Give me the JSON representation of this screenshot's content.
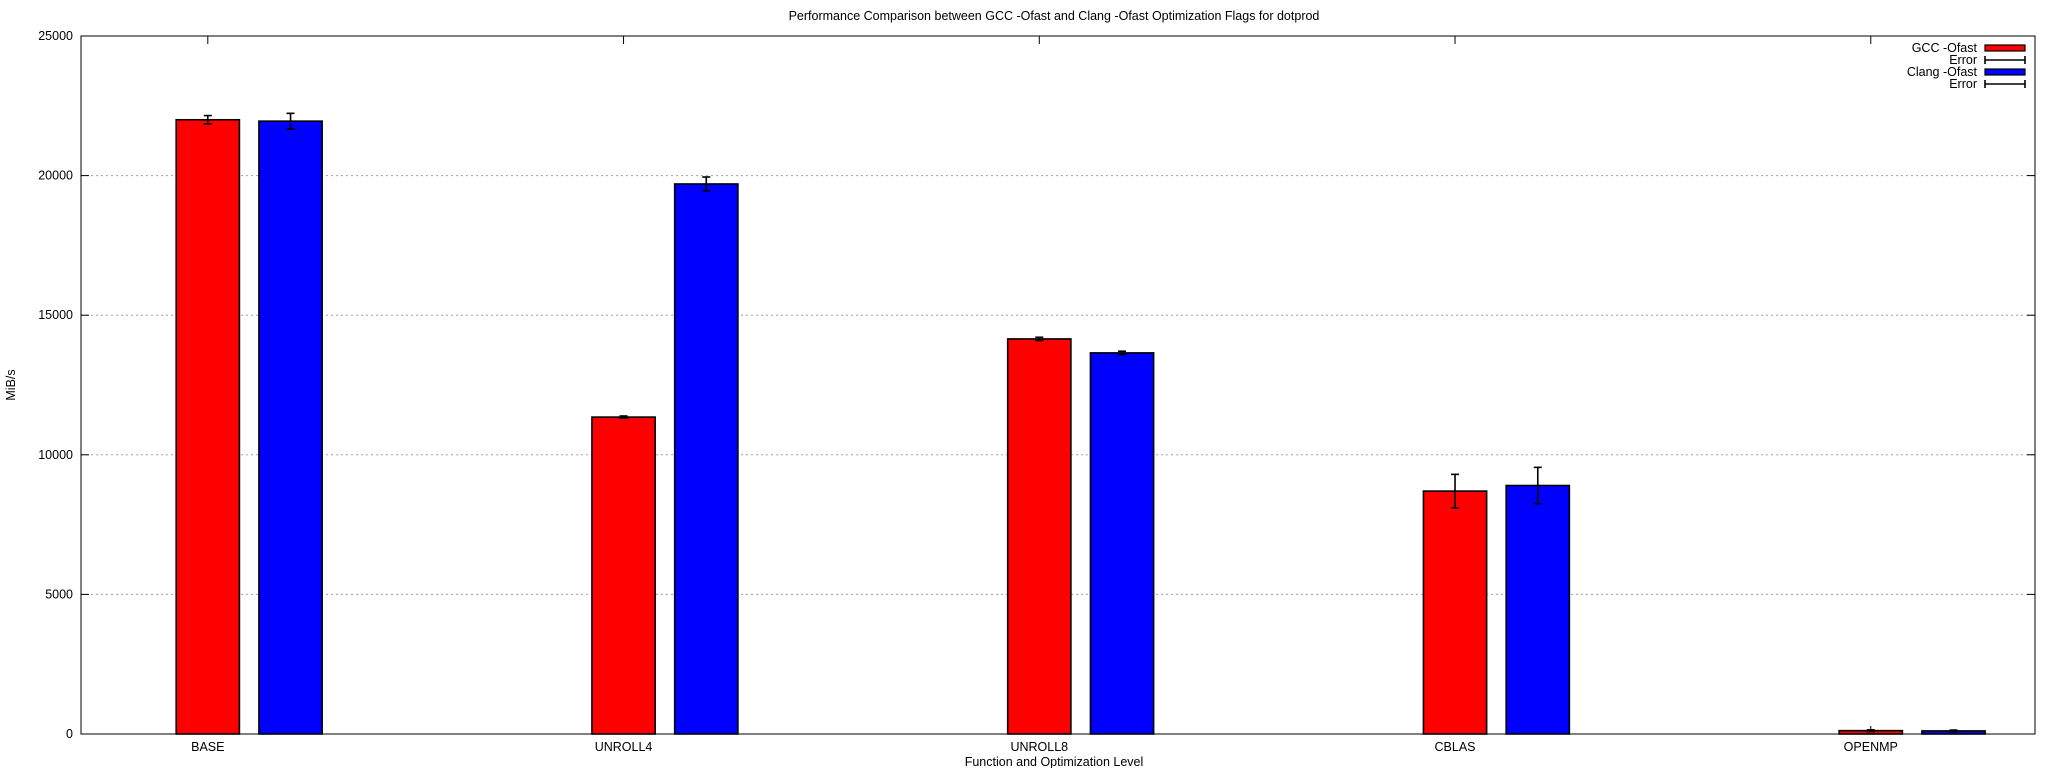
{
  "chart_data": {
    "type": "bar",
    "title": "Performance Comparison between GCC -Ofast and Clang -Ofast Optimization Flags for dotprod",
    "xlabel": "Function and Optimization Level",
    "ylabel": "MiB/s",
    "categories": [
      "BASE",
      "UNROLL4",
      "UNROLL8",
      "CBLAS",
      "OPENMP"
    ],
    "ylim": [
      0,
      25000
    ],
    "yticks": [
      0,
      5000,
      10000,
      15000,
      20000,
      25000
    ],
    "grid": "horizontal dotted",
    "legend_position": "top-right",
    "series": [
      {
        "name": "GCC -Ofast",
        "color": "#ff0000",
        "values": [
          22000,
          11350,
          14150,
          8700,
          120
        ],
        "errors": [
          150,
          40,
          60,
          600,
          30
        ]
      },
      {
        "name": "Clang -Ofast",
        "color": "#0000ff",
        "values": [
          21950,
          19700,
          13650,
          8900,
          110
        ],
        "errors": [
          280,
          250,
          60,
          650,
          30
        ]
      }
    ],
    "legend": [
      {
        "label": "GCC -Ofast",
        "kind": "bar",
        "color": "#ff0000"
      },
      {
        "label": "Error",
        "kind": "errorbar"
      },
      {
        "label": "Clang -Ofast",
        "kind": "bar",
        "color": "#0000ff"
      },
      {
        "label": "Error",
        "kind": "errorbar"
      }
    ]
  }
}
